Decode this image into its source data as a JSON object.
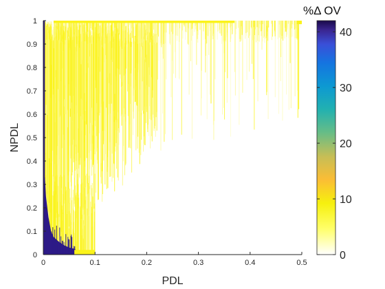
{
  "chart_data": {
    "type": "heatmap",
    "title": "",
    "xlabel": "PDL",
    "ylabel": "NPDL",
    "xlim": [
      0,
      0.5
    ],
    "ylim": [
      0,
      1
    ],
    "xticks": [
      "0",
      "0.1",
      "0.2",
      "0.3",
      "0.4",
      "0.5"
    ],
    "yticks": [
      "0",
      "0.1",
      "0.2",
      "0.3",
      "0.4",
      "0.5",
      "0.6",
      "0.7",
      "0.8",
      "0.9",
      "1"
    ],
    "colorbar": {
      "title": "%Δ OV",
      "range": [
        0,
        42
      ],
      "ticks": [
        "0",
        "10",
        "20",
        "30",
        "40"
      ],
      "colormap": "parula-like (white-yellow-orange-teal-blue-dark navy)"
    },
    "regions": [
      {
        "description": "high %ΔOV (~42) band hugging PDL≈0 across all NPDL",
        "pdl_max": 0.003,
        "npdl_range": [
          0,
          1
        ],
        "value": 42
      },
      {
        "description": "high %ΔOV region near origin, boundary curve",
        "boundary": [
          [
            0.0,
            0.33
          ],
          [
            0.003,
            0.33
          ],
          [
            0.005,
            0.25
          ],
          [
            0.01,
            0.16
          ],
          [
            0.015,
            0.1
          ],
          [
            0.02,
            0.075
          ],
          [
            0.03,
            0.055
          ],
          [
            0.04,
            0.04
          ],
          [
            0.05,
            0.03
          ],
          [
            0.06,
            0.025
          ],
          [
            0.063,
            0.02
          ],
          [
            0.063,
            0.0
          ]
        ],
        "value": 42
      },
      {
        "description": "low %ΔOV (~4) strip along NPDL≈0",
        "pdl_range": [
          0.06,
          0.1
        ],
        "npdl_max": 0.02,
        "value": 4
      },
      {
        "description": "low %ΔOV (~3) streaks above PDL<0.2 and along NPDL≈1",
        "value": 3
      }
    ],
    "colors": {
      "navy": "#2d1a87",
      "yellow": "#fbf31a",
      "pale_yellow": "#fdf98a"
    }
  }
}
